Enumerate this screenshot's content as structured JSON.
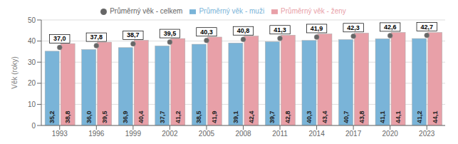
{
  "chart_data": {
    "type": "bar",
    "categories": [
      "1993",
      "1996",
      "1999",
      "2002",
      "2005",
      "2008",
      "2011",
      "2014",
      "2017",
      "2020",
      "2023"
    ],
    "series": [
      {
        "name": "Průměrný věk - muži",
        "type": "bar",
        "color": "#7ab4d8",
        "values": [
          35.2,
          36.0,
          36.9,
          37.7,
          38.5,
          39.1,
          39.7,
          40.3,
          40.7,
          41.1,
          41.2
        ],
        "value_labels": [
          "35,2",
          "36,0",
          "36,9",
          "37,7",
          "38,5",
          "39,1",
          "39,7",
          "40,3",
          "40,7",
          "41,1",
          "41,2"
        ]
      },
      {
        "name": "Průměrný věk - ženy",
        "type": "bar",
        "color": "#e8a0a8",
        "values": [
          38.8,
          39.5,
          40.4,
          41.2,
          41.9,
          42.4,
          42.8,
          43.4,
          43.8,
          44.1,
          44.1
        ],
        "value_labels": [
          "38,8",
          "39,5",
          "40,4",
          "41,2",
          "41,9",
          "42,4",
          "42,8",
          "43,4",
          "43,8",
          "44,1",
          "44,1"
        ]
      },
      {
        "name": "Průměrný věk - celkem",
        "type": "scatter",
        "color": "#666666",
        "values": [
          37.0,
          37.8,
          38.7,
          39.5,
          40.3,
          40.8,
          41.3,
          41.9,
          42.3,
          42.6,
          42.7
        ],
        "value_labels": [
          "37,0",
          "37,8",
          "38,7",
          "39,5",
          "40,3",
          "40,8",
          "41,3",
          "41,9",
          "42,3",
          "42,6",
          "42,7"
        ]
      }
    ],
    "ylabel": "Věk (roky)",
    "ylim": [
      0,
      50
    ],
    "yticks": [
      0,
      10,
      20,
      30,
      40,
      50
    ],
    "grid": true,
    "legend": "top",
    "data_labels": true
  }
}
